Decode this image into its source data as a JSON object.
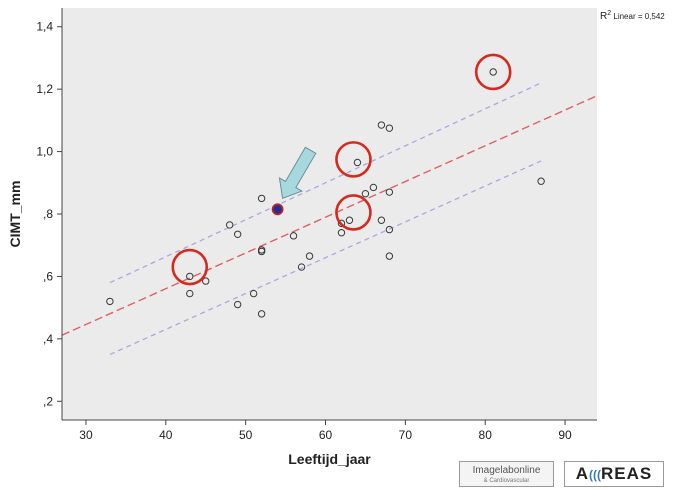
{
  "chart_data": {
    "type": "scatter",
    "xlabel": "Leeftijd_jaar",
    "ylabel": "CIMT_mm",
    "xlim": [
      27,
      94
    ],
    "ylim": [
      0.14,
      1.46
    ],
    "xticks": [
      30,
      40,
      50,
      60,
      70,
      80,
      90
    ],
    "yticks": [
      0.2,
      0.4,
      0.6,
      0.8,
      1.0,
      1.2,
      1.4
    ],
    "ytick_labels": [
      ",2",
      ",4",
      ",6",
      ",8",
      "1,0",
      "1,2",
      "1,4"
    ],
    "points": [
      {
        "x": 33,
        "y": 0.52
      },
      {
        "x": 43,
        "y": 0.6
      },
      {
        "x": 43,
        "y": 0.545
      },
      {
        "x": 45,
        "y": 0.585
      },
      {
        "x": 48,
        "y": 0.765
      },
      {
        "x": 49,
        "y": 0.735
      },
      {
        "x": 49,
        "y": 0.51
      },
      {
        "x": 51,
        "y": 0.545
      },
      {
        "x": 52,
        "y": 0.48
      },
      {
        "x": 52,
        "y": 0.68
      },
      {
        "x": 52,
        "y": 0.685
      },
      {
        "x": 52,
        "y": 0.85
      },
      {
        "x": 56,
        "y": 0.73
      },
      {
        "x": 57,
        "y": 0.63
      },
      {
        "x": 58,
        "y": 0.665
      },
      {
        "x": 62,
        "y": 0.74
      },
      {
        "x": 62,
        "y": 0.77
      },
      {
        "x": 63,
        "y": 0.78
      },
      {
        "x": 64,
        "y": 0.965
      },
      {
        "x": 65,
        "y": 0.865
      },
      {
        "x": 66,
        "y": 0.885
      },
      {
        "x": 67,
        "y": 0.78
      },
      {
        "x": 67,
        "y": 1.085
      },
      {
        "x": 68,
        "y": 1.075
      },
      {
        "x": 68,
        "y": 0.87
      },
      {
        "x": 68,
        "y": 0.75
      },
      {
        "x": 68,
        "y": 0.665
      },
      {
        "x": 81,
        "y": 1.255
      },
      {
        "x": 87,
        "y": 0.905
      }
    ],
    "highlighted_point": {
      "x": 54,
      "y": 0.815,
      "fill": "#1f2f8f",
      "stroke": "#c0202a"
    },
    "circled_points": [
      {
        "x": 43,
        "y": 0.63
      },
      {
        "x": 63.5,
        "y": 0.805
      },
      {
        "x": 63.5,
        "y": 0.975
      },
      {
        "x": 81,
        "y": 1.255
      }
    ],
    "fit_line": {
      "slope": 0.01145,
      "intercept": 0.1026,
      "color": "#e06060"
    },
    "ci_band": {
      "x": [
        33,
        87
      ],
      "upper": [
        0.58,
        1.22
      ],
      "lower": [
        0.35,
        0.97
      ],
      "color": "#a8a8e0"
    },
    "annotation": {
      "prefix": "R",
      "sup": "2",
      "text": " Linear = 0,542"
    },
    "arrow_color": "#a7d8de",
    "circle_color": "#d42a20",
    "background": "#ebebeb"
  },
  "logos": {
    "logo1_line1": "Imagelabonline",
    "logo1_line2": "& Cardiovascular",
    "logo2_prefix": "A",
    "logo2_mark": "(((",
    "logo2_suffix": "REAS"
  }
}
